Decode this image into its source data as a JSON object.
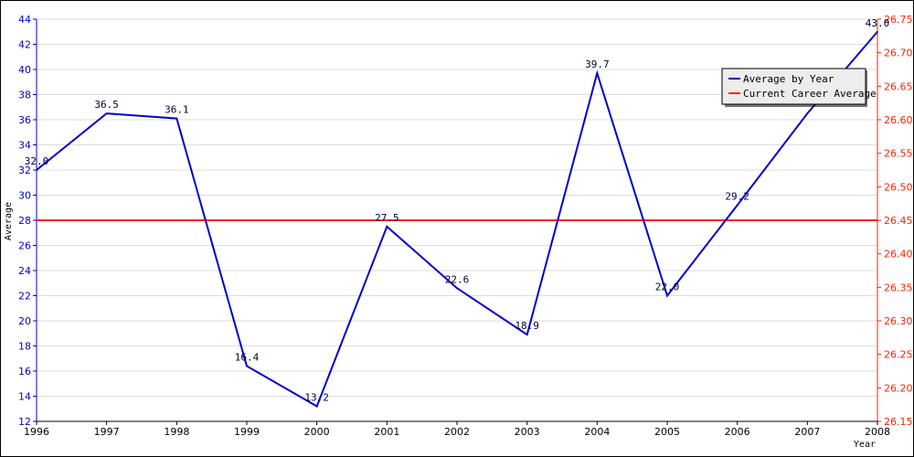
{
  "chart_data": {
    "type": "line",
    "xlabel": "Year",
    "ylabel": "Average",
    "categories": [
      "1996",
      "1997",
      "1998",
      "1999",
      "2000",
      "2001",
      "2002",
      "2003",
      "2004",
      "2005",
      "2006",
      "2007",
      "2008"
    ],
    "series": [
      {
        "name": "Average by Year",
        "color": "#0000cc",
        "values": [
          32.0,
          36.5,
          36.1,
          16.4,
          13.2,
          27.5,
          22.6,
          18.9,
          39.7,
          22.0,
          29.2,
          36.5,
          43.0
        ],
        "labels": [
          "32.0",
          "36.5",
          "36.1",
          "16.4",
          "13.2",
          "27.5",
          "22.6",
          "18.9",
          "39.7",
          "22.0",
          "29.2",
          "",
          "43.0"
        ]
      },
      {
        "name": "Current Career Average",
        "color": "#ff2200",
        "axis": "right",
        "value": 26.45
      }
    ],
    "left_axis": {
      "ylim": [
        12,
        44
      ],
      "ticks": [
        "12",
        "14",
        "16",
        "18",
        "20",
        "22",
        "24",
        "26",
        "28",
        "30",
        "32",
        "34",
        "36",
        "38",
        "40",
        "42",
        "44"
      ],
      "color": "#0000cc"
    },
    "right_axis": {
      "ylim": [
        26.15,
        26.75
      ],
      "ticks": [
        "26.15",
        "26.20",
        "26.25",
        "26.30",
        "26.35",
        "26.40",
        "26.45",
        "26.50",
        "26.55",
        "26.60",
        "26.65",
        "26.70",
        "26.75"
      ],
      "color": "#ff2200"
    },
    "grid": "horizontal",
    "legend_position": "top-right"
  }
}
